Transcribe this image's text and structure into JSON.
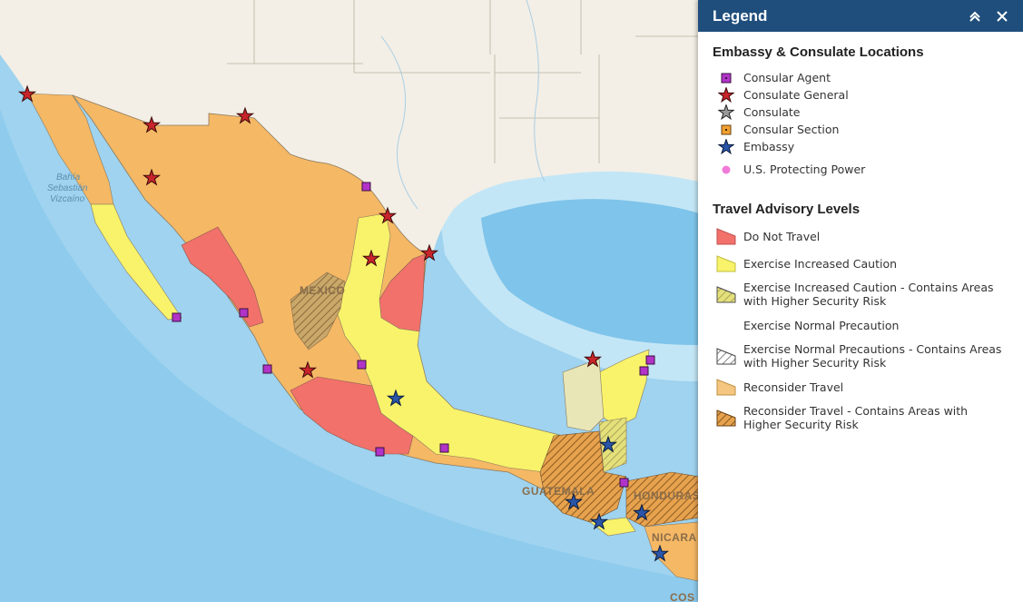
{
  "map": {
    "country_labels": [
      "MEXICO",
      "GUATEMALA",
      "HONDURAS",
      "NICARA",
      "COS"
    ],
    "water_label": [
      "Bahía",
      "Sebastián",
      "Vizcaíno"
    ],
    "colors": {
      "ocean": "#9fd3ef",
      "land": "#f3efe6",
      "do_not_travel": "#f2716b",
      "increased_caution": "#f8f36a",
      "reconsider": "#f5b865",
      "consular_agent": "#b133c8",
      "consulate_general": "#c8252b",
      "embassy": "#2a55a8"
    }
  },
  "legend": {
    "title": "Legend",
    "collapse_icon": "double-chevron-up-icon",
    "close_icon": "close-icon",
    "locations_title": "Embassy & Consulate Locations",
    "locations": [
      {
        "label": "Consular Agent",
        "icon": "purple-square-icon"
      },
      {
        "label": "Consulate General",
        "icon": "red-star-icon"
      },
      {
        "label": "Consulate",
        "icon": "gray-star-icon"
      },
      {
        "label": "Consular Section",
        "icon": "orange-square-icon"
      },
      {
        "label": "Embassy",
        "icon": "blue-star-icon"
      },
      {
        "label": "U.S. Protecting Power",
        "icon": "pink-dot-icon"
      }
    ],
    "advisory_title": "Travel Advisory Levels",
    "advisories": [
      {
        "label": "Do Not Travel",
        "icon": "red-swatch-icon"
      },
      {
        "label": "Exercise Increased Caution",
        "icon": "yellow-swatch-icon"
      },
      {
        "label": "Exercise Increased Caution - Contains Areas with Higher Security Risk",
        "icon": "yellow-hatched-swatch-icon"
      },
      {
        "label": "Exercise Normal Precaution",
        "icon": "empty-swatch-icon"
      },
      {
        "label": "Exercise Normal Precautions - Contains Areas with Higher Security Risk",
        "icon": "white-hatched-swatch-icon"
      },
      {
        "label": "Reconsider Travel",
        "icon": "orange-swatch-icon"
      },
      {
        "label": "Reconsider Travel - Contains Areas with Higher Security Risk",
        "icon": "orange-hatched-swatch-icon"
      }
    ]
  }
}
